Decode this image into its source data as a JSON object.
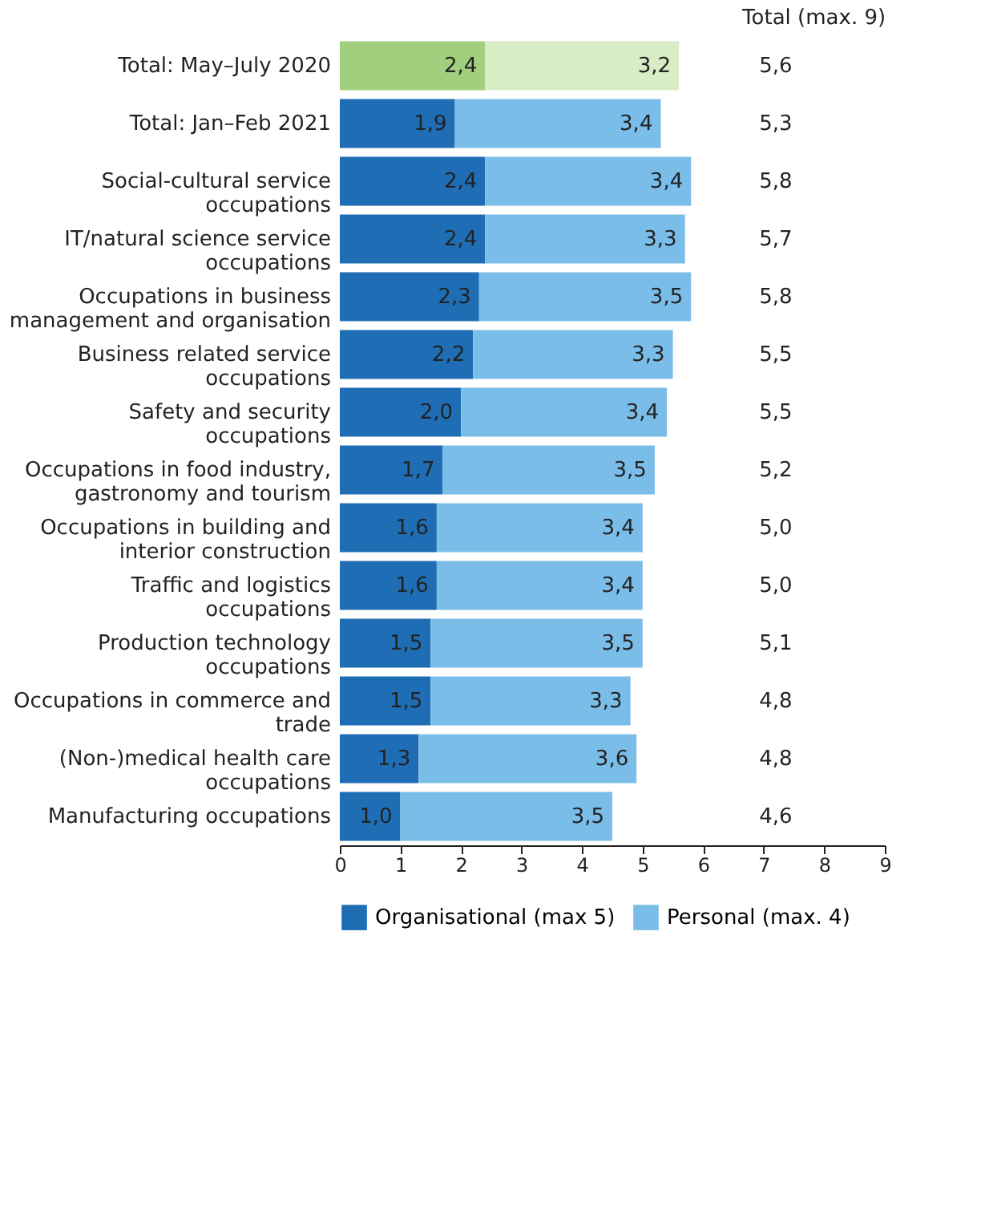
{
  "chart_data": {
    "type": "bar",
    "orientation": "horizontal",
    "stacked": true,
    "categories": [
      "Total: May–July 2020",
      "Total: Jan–Feb 2021",
      "Social-cultural service occupations",
      "IT/natural science service occupations",
      "Occupations in business management and organisation",
      "Business related service occupations",
      "Safety and security occupations",
      "Occupations in food industry, gastronomy and tourism",
      "Occupations in building and interior construction",
      "Traffic and logistics occupations",
      "Production technology occupations",
      "Occupations in commerce and trade",
      "(Non-)medical health care occupations",
      "Manufacturing occupations"
    ],
    "series": [
      {
        "name": "Organisational (max 5)",
        "color": "#1f6db4",
        "colors": [
          "#a2cf7d",
          "#1f6db4",
          "#1f6db4",
          "#1f6db4",
          "#1f6db4",
          "#1f6db4",
          "#1f6db4",
          "#1f6db4",
          "#1f6db4",
          "#1f6db4",
          "#1f6db4",
          "#1f6db4",
          "#1f6db4",
          "#1f6db4"
        ],
        "values": [
          2.4,
          1.9,
          2.4,
          2.4,
          2.3,
          2.2,
          2.0,
          1.7,
          1.6,
          1.6,
          1.5,
          1.5,
          1.3,
          1.0
        ],
        "value_labels": [
          "2,4",
          "1,9",
          "2,4",
          "2,4",
          "2,3",
          "2,2",
          "2,0",
          "1,7",
          "1,6",
          "1,6",
          "1,5",
          "1,5",
          "1,3",
          "1,0"
        ]
      },
      {
        "name": "Personal (max. 4)",
        "color": "#7bbde9",
        "colors": [
          "#d8ecc6",
          "#7bbde9",
          "#7bbde9",
          "#7bbde9",
          "#7bbde9",
          "#7bbde9",
          "#7bbde9",
          "#7bbde9",
          "#7bbde9",
          "#7bbde9",
          "#7bbde9",
          "#7bbde9",
          "#7bbde9",
          "#7bbde9"
        ],
        "values": [
          3.2,
          3.4,
          3.4,
          3.3,
          3.5,
          3.3,
          3.4,
          3.5,
          3.4,
          3.4,
          3.5,
          3.3,
          3.6,
          3.5
        ],
        "value_labels": [
          "3,2",
          "3,4",
          "3,4",
          "3,3",
          "3,5",
          "3,3",
          "3,4",
          "3,5",
          "3,4",
          "3,4",
          "3,5",
          "3,3",
          "3,6",
          "3,5"
        ]
      }
    ],
    "annotations": [
      "Total (max. 9)",
      "5,6",
      "5,3",
      "5,8",
      "5,7",
      "5,8",
      "5,5",
      "5,5",
      "5,2",
      "5,0",
      "5,0",
      "5,1",
      "4,8",
      "4,8",
      "4,6"
    ],
    "xlim": [
      0,
      9
    ],
    "xticks": [
      0,
      1,
      2,
      3,
      4,
      5,
      6,
      7,
      8,
      9
    ],
    "grid": false,
    "legend": "bottom"
  }
}
